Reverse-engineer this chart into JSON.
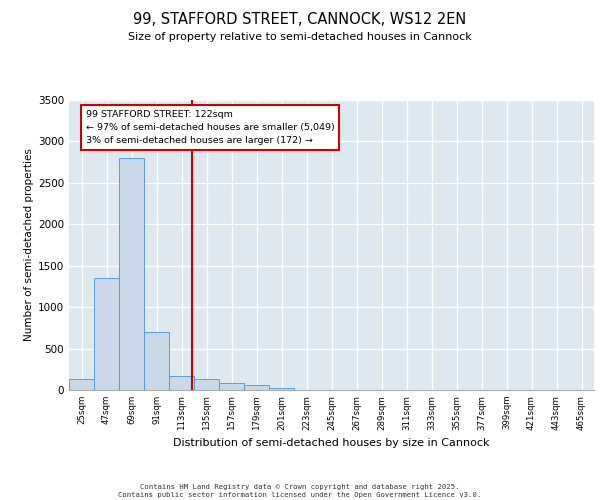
{
  "title_line1": "99, STAFFORD STREET, CANNOCK, WS12 2EN",
  "title_line2": "Size of property relative to semi-detached houses in Cannock",
  "xlabel": "Distribution of semi-detached houses by size in Cannock",
  "ylabel": "Number of semi-detached properties",
  "categories": [
    "25sqm",
    "47sqm",
    "69sqm",
    "91sqm",
    "113sqm",
    "135sqm",
    "157sqm",
    "179sqm",
    "201sqm",
    "223sqm",
    "245sqm",
    "267sqm",
    "289sqm",
    "311sqm",
    "333sqm",
    "355sqm",
    "377sqm",
    "399sqm",
    "421sqm",
    "443sqm",
    "465sqm"
  ],
  "values": [
    130,
    1355,
    2800,
    700,
    170,
    130,
    90,
    60,
    28,
    0,
    0,
    0,
    0,
    0,
    0,
    0,
    0,
    0,
    0,
    0,
    0
  ],
  "bar_color": "#c9d9e8",
  "bar_edge_color": "#5b9bd5",
  "vline_x": 4.41,
  "vline_label": "99 STAFFORD STREET: 122sqm",
  "annotation_smaller": "← 97% of semi-detached houses are smaller (5,049)",
  "annotation_larger": "3% of semi-detached houses are larger (172) →",
  "annotation_box_color": "#ffffff",
  "annotation_box_edge": "#cc0000",
  "vline_color": "#cc0000",
  "ylim": [
    0,
    3500
  ],
  "yticks": [
    0,
    500,
    1000,
    1500,
    2000,
    2500,
    3000,
    3500
  ],
  "background_color": "#dde8f0",
  "grid_color": "#ffffff",
  "footer_line1": "Contains HM Land Registry data © Crown copyright and database right 2025.",
  "footer_line2": "Contains public sector information licensed under the Open Government Licence v3.0."
}
